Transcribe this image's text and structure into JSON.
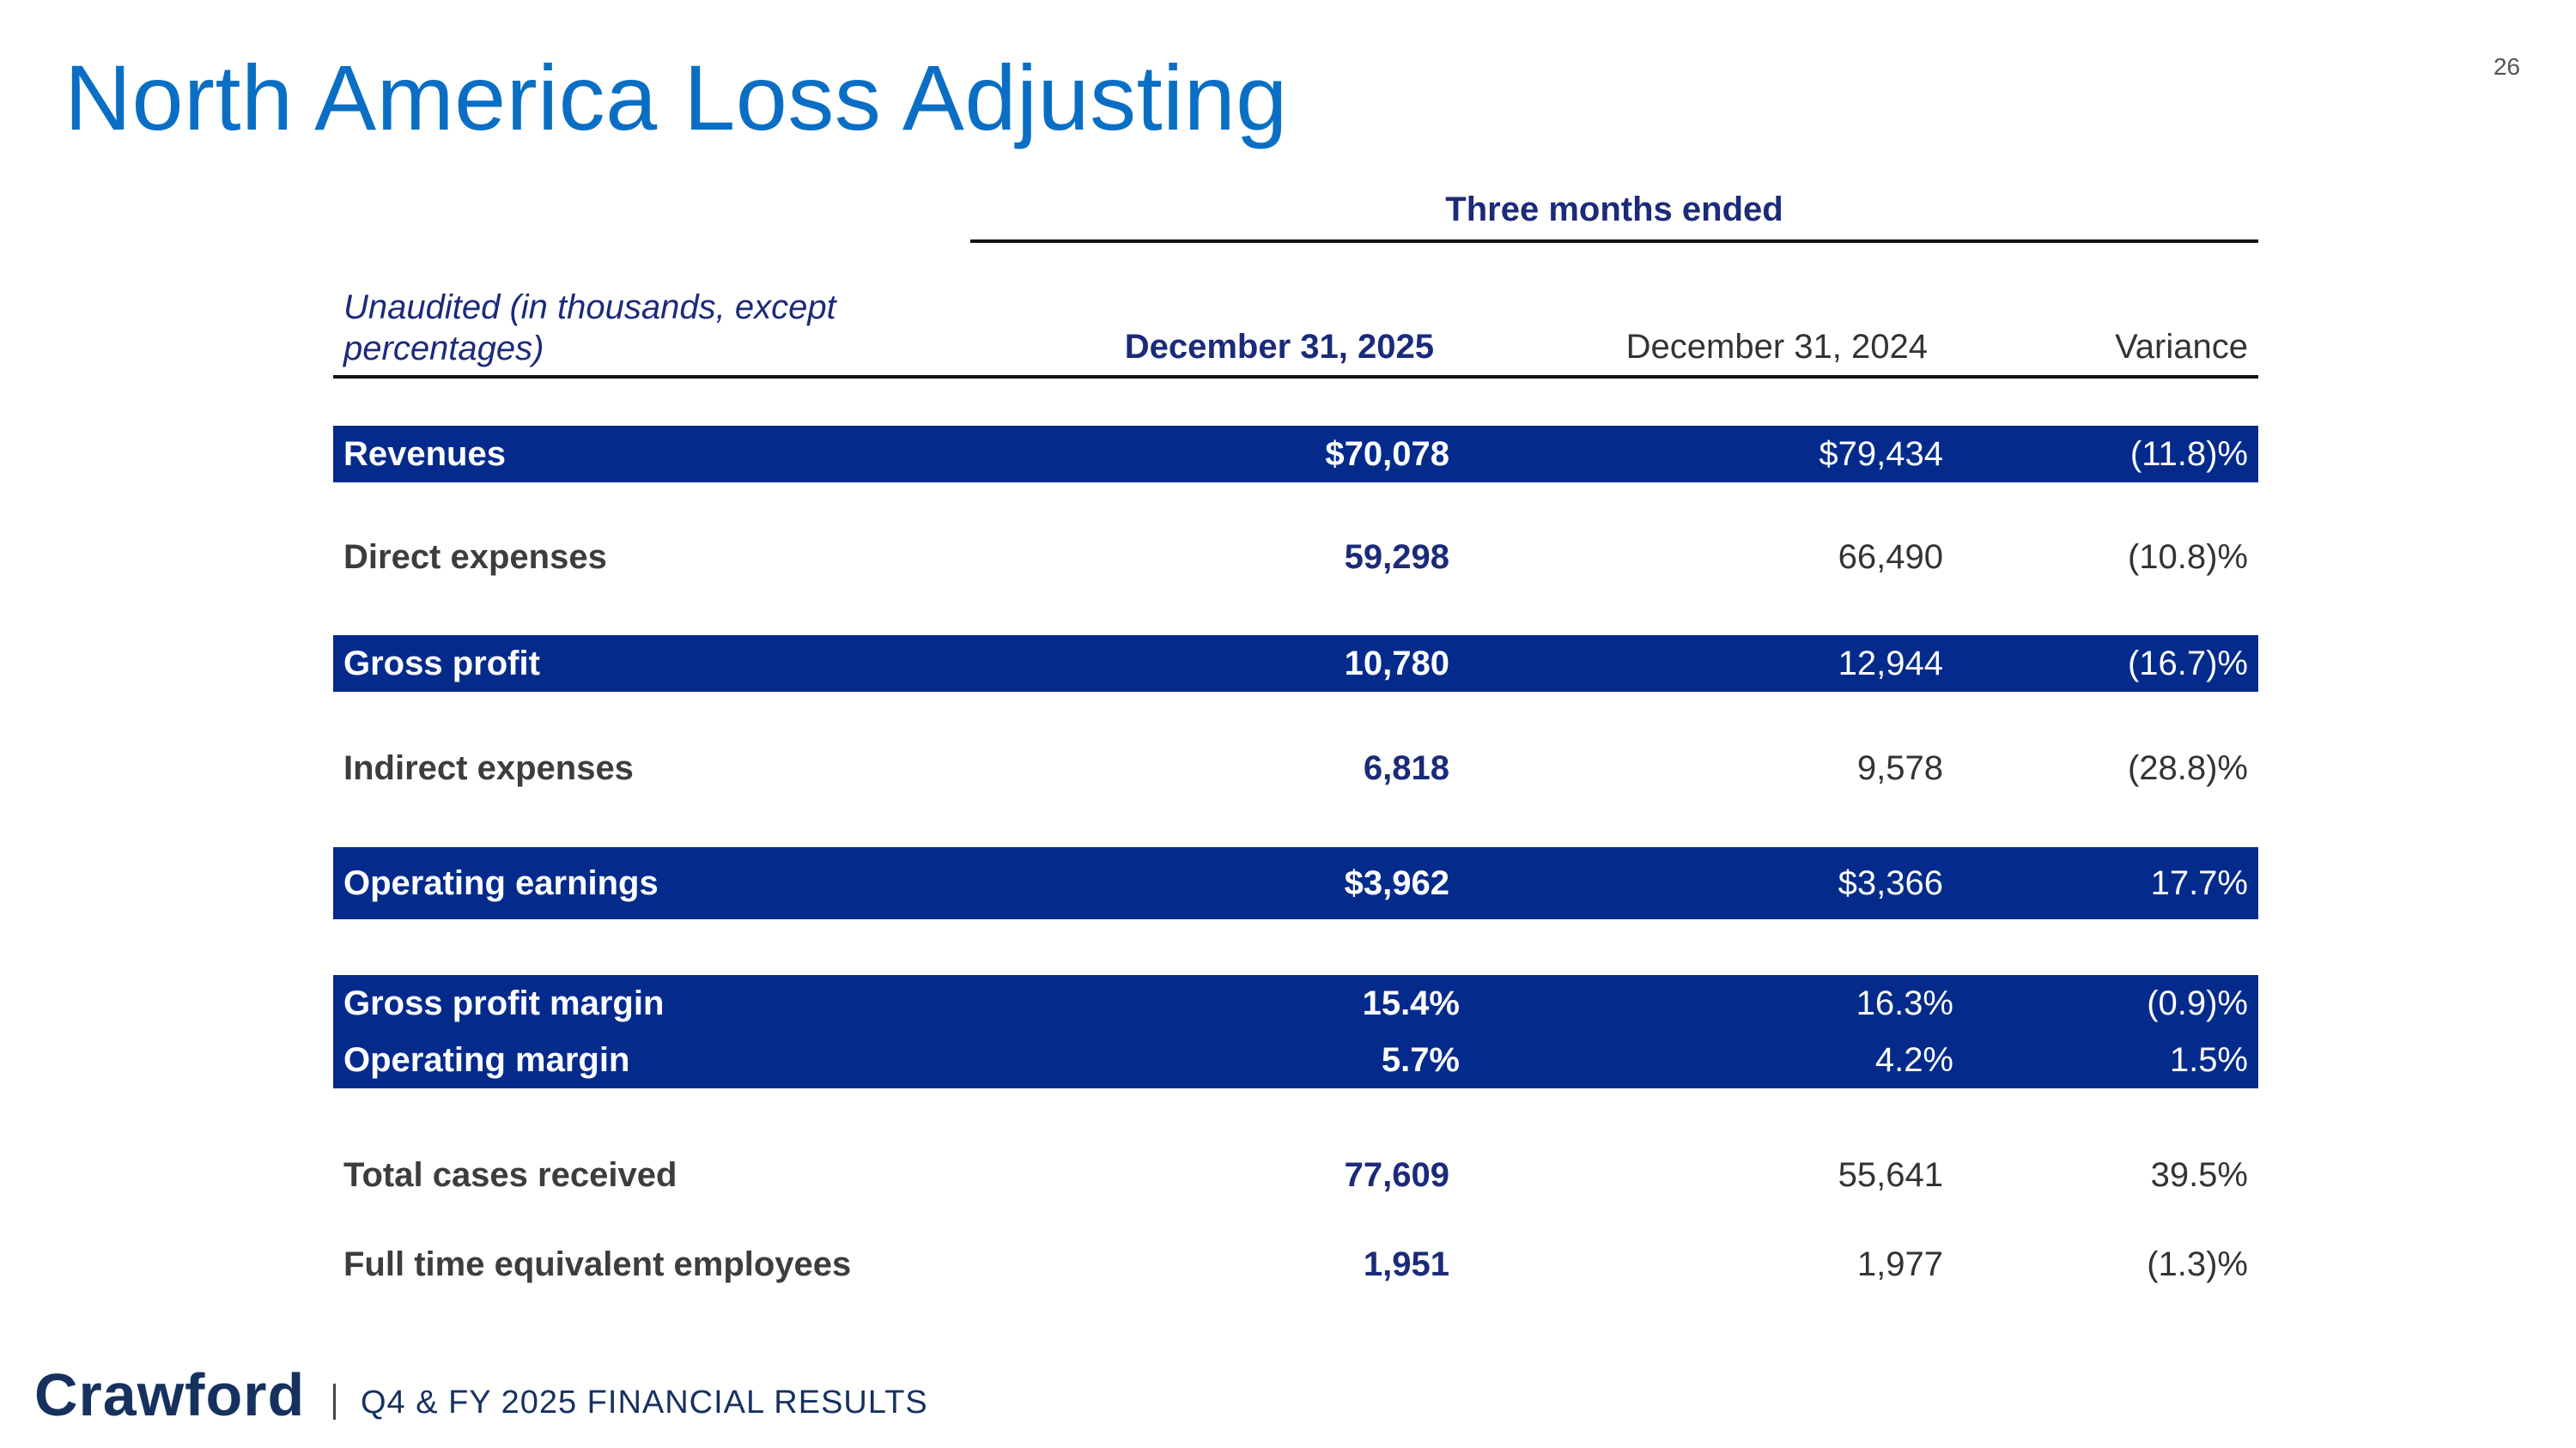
{
  "page": {
    "number": "26",
    "title": "North America Loss Adjusting"
  },
  "table": {
    "period_header": "Three months ended",
    "note": "Unaudited (in thousands, except percentages)",
    "columns": {
      "current": "December 31, 2025",
      "prior": "December 31, 2024",
      "variance": "Variance"
    },
    "rows": [
      {
        "label": "Revenues",
        "current": "$70,078",
        "prior": "$79,434",
        "variance": "(11.8)%"
      },
      {
        "label": "Direct expenses",
        "current": "59,298",
        "prior": "66,490",
        "variance": "(10.8)%"
      },
      {
        "label": "Gross profit",
        "current": "10,780",
        "prior": "12,944",
        "variance": "(16.7)%"
      },
      {
        "label": "Indirect expenses",
        "current": "6,818",
        "prior": "9,578",
        "variance": "(28.8)%"
      },
      {
        "label": "Operating earnings",
        "current": "$3,962",
        "prior": "$3,366",
        "variance": "17.7%"
      },
      {
        "label": "Gross profit margin",
        "current": "15.4%",
        "prior": "16.3%",
        "variance": "(0.9)%"
      },
      {
        "label": "Operating margin",
        "current": "5.7%",
        "prior": "4.2%",
        "variance": "1.5%"
      },
      {
        "label": "Total cases received",
        "current": "77,609",
        "prior": "55,641",
        "variance": "39.5%"
      },
      {
        "label": "Full time equivalent employees",
        "current": "1,951",
        "prior": "1,977",
        "variance": "(1.3)%"
      }
    ]
  },
  "footer": {
    "logo": "Crawford",
    "text": "Q4 & FY 2025 FINANCIAL RESULTS"
  },
  "colors": {
    "title_blue": "#0a6fc4",
    "band_navy": "#042b8c",
    "accent_navy": "#1b2b7a"
  }
}
